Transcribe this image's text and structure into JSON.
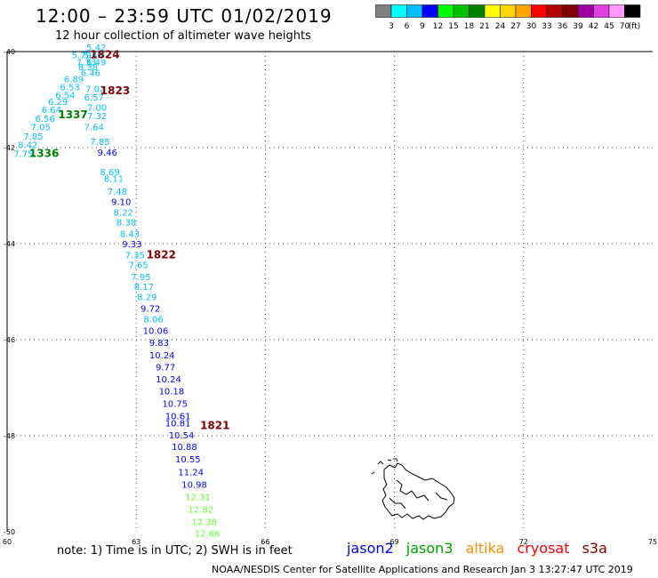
{
  "header": {
    "title": "12:00 – 23:59 UTC 01/02/2019",
    "subtitle": "12 hour collection of altimeter wave heights"
  },
  "legend": {
    "unit": "(ft)",
    "colors": [
      "#7f7f7f",
      "#00ffff",
      "#00bfff",
      "#0000ff",
      "#00ff00",
      "#00c000",
      "#008000",
      "#ffff00",
      "#ffd700",
      "#ffa500",
      "#ff0000",
      "#b00000",
      "#800000",
      "#a000a0",
      "#e040e0",
      "#ff99ff",
      "#000000"
    ],
    "labels": [
      "3",
      "6",
      "9",
      "12",
      "15",
      "18",
      "21",
      "24",
      "27",
      "30",
      "33",
      "36",
      "39",
      "42",
      "45",
      "70"
    ]
  },
  "axes": {
    "x_ticks": [
      "60",
      "63",
      "66",
      "69",
      "72",
      "75"
    ],
    "y_ticks": [
      "-40",
      "-42",
      "-44",
      "-46",
      "-48",
      "-50"
    ]
  },
  "chart_data": {
    "type": "scatter",
    "xlim": [
      60,
      75
    ],
    "ylim": [
      -50,
      -40
    ],
    "grid": true,
    "points": [
      {
        "x": 62.07,
        "y": -39.98,
        "v": "5.42",
        "c": "#00bfff"
      },
      {
        "x": 61.73,
        "y": -40.14,
        "v": "5.79",
        "c": "#00bfff"
      },
      {
        "x": 62.0,
        "y": -40.14,
        "v": "5.49",
        "c": "#00bfff"
      },
      {
        "x": 61.84,
        "y": -40.29,
        "v": "7.33",
        "c": "#00bfff"
      },
      {
        "x": 62.07,
        "y": -40.29,
        "v": "6.49",
        "c": "#00bfff"
      },
      {
        "x": 61.88,
        "y": -40.39,
        "v": "8.38",
        "c": "#00bfff"
      },
      {
        "x": 61.94,
        "y": -40.51,
        "v": "6.46",
        "c": "#00bfff"
      },
      {
        "x": 61.55,
        "y": -40.64,
        "v": "6.89",
        "c": "#00bfff"
      },
      {
        "x": 61.46,
        "y": -40.81,
        "v": "6.53",
        "c": "#00bfff"
      },
      {
        "x": 62.05,
        "y": -40.84,
        "v": "7.02",
        "c": "#00bfff"
      },
      {
        "x": 61.35,
        "y": -40.97,
        "v": "6.54",
        "c": "#00bfff"
      },
      {
        "x": 62.02,
        "y": -41.02,
        "v": "6.57",
        "c": "#00bfff"
      },
      {
        "x": 61.18,
        "y": -41.11,
        "v": "6.29",
        "c": "#00bfff"
      },
      {
        "x": 62.09,
        "y": -41.23,
        "v": "7.00",
        "c": "#00bfff"
      },
      {
        "x": 61.03,
        "y": -41.28,
        "v": "6.64",
        "c": "#00bfff"
      },
      {
        "x": 62.09,
        "y": -41.41,
        "v": "7.32",
        "c": "#00bfff"
      },
      {
        "x": 60.88,
        "y": -41.46,
        "v": "6.56",
        "c": "#00bfff"
      },
      {
        "x": 60.78,
        "y": -41.64,
        "v": "7.05",
        "c": "#00bfff"
      },
      {
        "x": 62.02,
        "y": -41.64,
        "v": "7.64",
        "c": "#00bfff"
      },
      {
        "x": 60.61,
        "y": -41.83,
        "v": "7.85",
        "c": "#00bfff"
      },
      {
        "x": 62.16,
        "y": -41.94,
        "v": "7.85",
        "c": "#00bfff"
      },
      {
        "x": 60.48,
        "y": -42.01,
        "v": "8.42",
        "c": "#00bfff"
      },
      {
        "x": 60.38,
        "y": -42.19,
        "v": "7.75",
        "c": "#00bfff"
      },
      {
        "x": 62.33,
        "y": -42.17,
        "v": "9.46",
        "c": "#0000ff"
      },
      {
        "x": 62.39,
        "y": -42.57,
        "v": "8.69",
        "c": "#00bfff"
      },
      {
        "x": 62.48,
        "y": -42.71,
        "v": "8.11",
        "c": "#00bfff"
      },
      {
        "x": 62.56,
        "y": -42.98,
        "v": "7.48",
        "c": "#00bfff"
      },
      {
        "x": 62.65,
        "y": -43.19,
        "v": "9.10",
        "c": "#0000ff"
      },
      {
        "x": 62.7,
        "y": -43.42,
        "v": "8.22",
        "c": "#00bfff"
      },
      {
        "x": 62.77,
        "y": -43.62,
        "v": "8.38",
        "c": "#00bfff"
      },
      {
        "x": 62.85,
        "y": -43.86,
        "v": "8.43",
        "c": "#00bfff"
      },
      {
        "x": 62.9,
        "y": -44.07,
        "v": "9.33",
        "c": "#0000ff"
      },
      {
        "x": 62.97,
        "y": -44.31,
        "v": "7.35",
        "c": "#00bfff"
      },
      {
        "x": 63.05,
        "y": -44.51,
        "v": "7.65",
        "c": "#00bfff"
      },
      {
        "x": 63.11,
        "y": -44.76,
        "v": "7.95",
        "c": "#00bfff"
      },
      {
        "x": 63.18,
        "y": -44.96,
        "v": "8.17",
        "c": "#00bfff"
      },
      {
        "x": 63.25,
        "y": -45.18,
        "v": "8.29",
        "c": "#00bfff"
      },
      {
        "x": 63.33,
        "y": -45.42,
        "v": "9.72",
        "c": "#0000ff"
      },
      {
        "x": 63.4,
        "y": -45.64,
        "v": "8.06",
        "c": "#00bfff"
      },
      {
        "x": 63.45,
        "y": -45.88,
        "v": "10.06",
        "c": "#0000ff"
      },
      {
        "x": 63.53,
        "y": -46.13,
        "v": "9.83",
        "c": "#0000ff"
      },
      {
        "x": 63.6,
        "y": -46.39,
        "v": "10.24",
        "c": "#0000ff"
      },
      {
        "x": 63.68,
        "y": -46.64,
        "v": "9.77",
        "c": "#0000ff"
      },
      {
        "x": 63.75,
        "y": -46.89,
        "v": "10.24",
        "c": "#0000ff"
      },
      {
        "x": 63.82,
        "y": -47.14,
        "v": "10.18",
        "c": "#0000ff"
      },
      {
        "x": 63.9,
        "y": -47.4,
        "v": "10.75",
        "c": "#0000ff"
      },
      {
        "x": 63.97,
        "y": -47.66,
        "v": "10.61",
        "c": "#0000ff"
      },
      {
        "x": 63.97,
        "y": -47.81,
        "v": "10.81",
        "c": "#0000ff"
      },
      {
        "x": 64.05,
        "y": -48.06,
        "v": "10.54",
        "c": "#0000ff"
      },
      {
        "x": 64.12,
        "y": -48.3,
        "v": "10.88",
        "c": "#0000ff"
      },
      {
        "x": 64.2,
        "y": -48.56,
        "v": "10.55",
        "c": "#0000ff"
      },
      {
        "x": 64.27,
        "y": -48.82,
        "v": "11.24",
        "c": "#0000ff"
      },
      {
        "x": 64.35,
        "y": -49.08,
        "v": "10.98",
        "c": "#0000ff"
      },
      {
        "x": 64.43,
        "y": -49.34,
        "v": "12.31",
        "c": "#66ff33"
      },
      {
        "x": 64.5,
        "y": -49.6,
        "v": "12.82",
        "c": "#66ff33"
      },
      {
        "x": 64.58,
        "y": -49.86,
        "v": "12.38",
        "c": "#66ff33"
      },
      {
        "x": 64.65,
        "y": -50.1,
        "v": "12.66",
        "c": "#66ff33"
      }
    ],
    "time_labels": [
      {
        "x": 62.27,
        "y": -40.14,
        "v": "1824",
        "c": "#800000"
      },
      {
        "x": 62.51,
        "y": -40.89,
        "v": "1823",
        "c": "#800000"
      },
      {
        "x": 61.53,
        "y": -41.39,
        "v": "1337",
        "c": "#008000"
      },
      {
        "x": 60.86,
        "y": -42.19,
        "v": "1336",
        "c": "#008000"
      },
      {
        "x": 63.58,
        "y": -44.31,
        "v": "1822",
        "c": "#800000"
      },
      {
        "x": 64.83,
        "y": -47.86,
        "v": "1821",
        "c": "#800000"
      }
    ]
  },
  "footer": {
    "note": "note: 1) Time is in UTC; 2) SWH is in feet",
    "satellites": [
      {
        "name": "jason2",
        "color": "#0000ff"
      },
      {
        "name": "jason3",
        "color": "#00a000"
      },
      {
        "name": "altika",
        "color": "#ff8c00"
      },
      {
        "name": "cryosat",
        "color": "#ff0000"
      },
      {
        "name": "s3a",
        "color": "#800000"
      }
    ],
    "credit": "NOAA/NESDIS Center for Satellite Applications and Research   Jan  3 13:27:47 UTC 2019"
  }
}
